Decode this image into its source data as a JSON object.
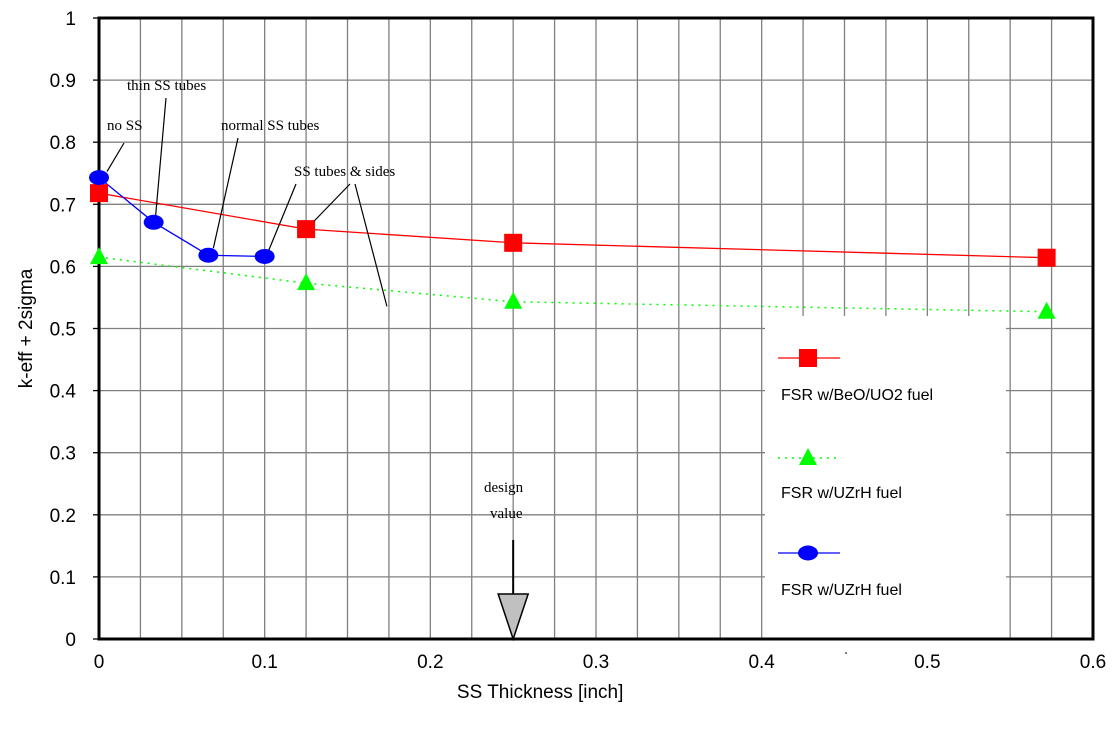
{
  "chart_data": {
    "type": "line",
    "title": "",
    "xlabel": "SS Thickness [inch]",
    "ylabel": "k-eff + 2sigma",
    "xlim": [
      0,
      0.6
    ],
    "ylim": [
      0,
      1
    ],
    "x_ticks": [
      "0",
      "0.1",
      "0.2",
      "0.3",
      "0.4",
      "0.5",
      "0.6"
    ],
    "y_ticks": [
      "0",
      "0.1",
      "0.2",
      "0.3",
      "0.4",
      "0.5",
      "0.6",
      "0.7",
      "0.8",
      "0.9",
      "1"
    ],
    "x_gridlines": [
      0,
      0.025,
      0.05,
      0.075,
      0.1,
      0.125,
      0.15,
      0.175,
      0.2,
      0.225,
      0.25,
      0.275,
      0.3,
      0.325,
      0.35,
      0.375,
      0.4,
      0.425,
      0.45,
      0.475,
      0.5,
      0.525,
      0.55,
      0.575,
      0.6
    ],
    "grid": true,
    "legend_position": "bottom-right",
    "series": [
      {
        "name": "FSR w/BeO/UO2 fuel",
        "color": "#ff0000",
        "marker": "square",
        "line": "solid",
        "points": [
          [
            0,
            0.718
          ],
          [
            0.125,
            0.66
          ],
          [
            0.25,
            0.638
          ],
          [
            0.572,
            0.614
          ]
        ]
      },
      {
        "name": "FSR w/UZrH fuel",
        "color": "#00ff00",
        "marker": "triangle",
        "line": "dotted",
        "points": [
          [
            0,
            0.615
          ],
          [
            0.125,
            0.573
          ],
          [
            0.25,
            0.543
          ],
          [
            0.572,
            0.527
          ]
        ]
      },
      {
        "name": "FSR w/UZrH fuel",
        "color": "#0000ff",
        "marker": "circle",
        "line": "solid",
        "points": [
          [
            0,
            0.743
          ],
          [
            0.033,
            0.671
          ],
          [
            0.066,
            0.618
          ],
          [
            0.1,
            0.616
          ]
        ]
      }
    ],
    "annotations": [
      {
        "text": "no SS",
        "target": [
          0,
          0.743
        ]
      },
      {
        "text": "thin SS tubes",
        "target": [
          0.033,
          0.671
        ]
      },
      {
        "text": "normal SS tubes",
        "target": [
          0.066,
          0.618
        ]
      },
      {
        "text": "SS tubes & sides",
        "targets": [
          [
            0.1,
            0.616
          ],
          [
            0.125,
            0.66
          ],
          [
            0.175,
            0.555
          ]
        ]
      },
      {
        "text": "design",
        "text2": "value",
        "target": [
          0.25,
          0
        ]
      }
    ]
  }
}
